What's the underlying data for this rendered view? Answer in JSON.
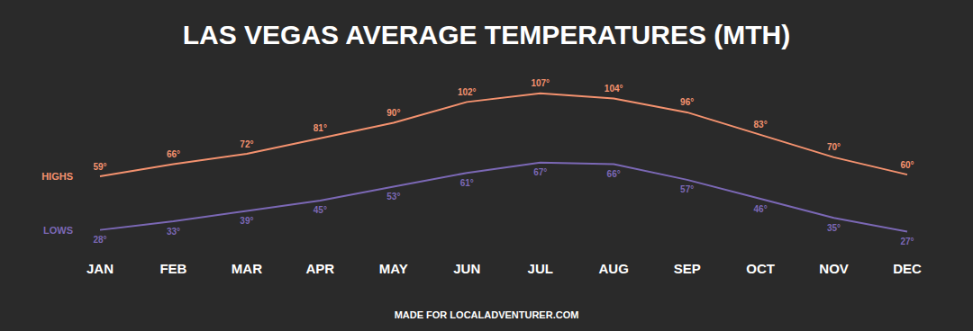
{
  "chart_data": {
    "type": "line",
    "title": "LAS VEGAS AVERAGE TEMPERATURES (MTH)",
    "caption": "MADE FOR LOCALADVENTURER.COM",
    "categories": [
      "JAN",
      "FEB",
      "MAR",
      "APR",
      "MAY",
      "JUN",
      "JUL",
      "AUG",
      "SEP",
      "OCT",
      "NOV",
      "DEC"
    ],
    "series": [
      {
        "name": "HIGHS",
        "color": "#f4926f",
        "values": [
          59,
          66,
          72,
          81,
          90,
          102,
          107,
          104,
          96,
          83,
          70,
          60
        ],
        "value_labels": [
          "59°",
          "66°",
          "72°",
          "81°",
          "90°",
          "102°",
          "107°",
          "104°",
          "96°",
          "83°",
          "70°",
          "60°"
        ]
      },
      {
        "name": "LOWS",
        "color": "#7b68b5",
        "values": [
          28,
          33,
          39,
          45,
          53,
          61,
          67,
          66,
          57,
          46,
          35,
          27
        ],
        "value_labels": [
          "28°",
          "33°",
          "39°",
          "45°",
          "53°",
          "61°",
          "67°",
          "66°",
          "57°",
          "46°",
          "35°",
          "27°"
        ]
      }
    ],
    "ylim": [
      20,
      110
    ],
    "grid": false,
    "data_labels": true,
    "tick_labels": "x"
  }
}
